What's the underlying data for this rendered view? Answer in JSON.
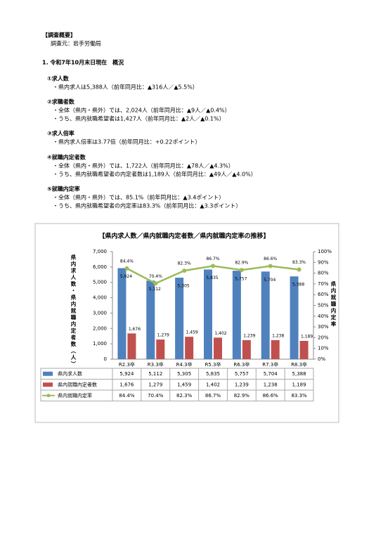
{
  "document": {
    "section_header": "【調査概要】",
    "source": "調査元：岩手労働局",
    "heading": "1. 令和7年10月末日現在　概況",
    "items": [
      {
        "title": "①求人数",
        "lines": [
          "・県内求人は5,388人（前年同月比：▲316人／▲5.5%）"
        ]
      },
      {
        "title": "②求職者数",
        "lines": [
          "・全体（県内・県外）では、2,024人（前年同月比：▲9人／▲0.4%）",
          "・うち、県内就職希望者は1,427人（前年同月比：▲2人／▲0.1%）"
        ]
      },
      {
        "title": "③求人倍率",
        "lines": [
          "・県内求人倍率は3.77倍（前年同月比：+0.22ポイント）"
        ]
      },
      {
        "title": "④就職内定者数",
        "lines": [
          "・全体（県内・県外）では、1,722人（前年同月比：▲78人／▲4.3%）",
          "・うち、県内就職希望者の内定者数は1,189人（前年同月比：▲49人／▲4.0%）"
        ]
      },
      {
        "title": "⑤就職内定率",
        "lines": [
          "・全体（県内・県外）では、85.1%（前年同月比：▲3.4ポイント）",
          "・うち、県内就職希望者の内定率は83.3%（前年同月比：▲3.3ポイント）"
        ]
      }
    ]
  },
  "chart_data": {
    "type": "bar",
    "title": "【県内求人数／県内就職内定者数／県内就職内定率の推移】",
    "y_label": "県内求人数・県内就職内定者数（人）",
    "y2_label": "県内就職内定率",
    "categories": [
      "R2.3卒",
      "R3.3卒",
      "R4.3卒",
      "R5.3卒",
      "R6.3卒",
      "R7.3卒",
      "R8.3卒"
    ],
    "series": [
      {
        "name": "県内求人数",
        "type": "bar",
        "color": "#4f81bd",
        "values": [
          5924,
          5112,
          5305,
          5835,
          5757,
          5704,
          5388
        ],
        "value_labels": [
          "5,924",
          "5,112",
          "5,305",
          "5,835",
          "5,757",
          "5,704",
          "5,388"
        ]
      },
      {
        "name": "県内就職内定者数",
        "type": "bar",
        "color": "#c0504d",
        "values": [
          1676,
          1279,
          1459,
          1402,
          1239,
          1238,
          1189
        ],
        "value_labels": [
          "1,676",
          "1,279",
          "1,459",
          "1,402",
          "1,239",
          "1,238",
          "1,189"
        ]
      },
      {
        "name": "県内就職内定率",
        "type": "line",
        "axis": "y2",
        "color": "#9bbb59",
        "values": [
          84.4,
          70.4,
          82.3,
          86.7,
          82.9,
          86.6,
          83.3
        ],
        "value_labels": [
          "84.4%",
          "70.4%",
          "82.3%",
          "86.7%",
          "82.9%",
          "86.6%",
          "83.3%"
        ]
      }
    ],
    "ylim": [
      0,
      7000
    ],
    "yticks": [
      0,
      {
        "value": 1000,
        "label": "1,000"
      },
      {
        "value": 2000,
        "label": "2,000"
      },
      {
        "value": 3000,
        "label": "3,000"
      },
      {
        "value": 4000,
        "label": "4,000"
      },
      {
        "value": 5000,
        "label": "5,000"
      },
      {
        "value": 6000,
        "label": "6,000"
      },
      {
        "value": 7000,
        "label": "7,000"
      }
    ],
    "y2lim": [
      0,
      100
    ],
    "y2ticks": [
      {
        "value": 0,
        "label": "0%"
      },
      {
        "value": 10,
        "label": "10%"
      },
      {
        "value": 20,
        "label": "20%"
      },
      {
        "value": 30,
        "label": "30%"
      },
      {
        "value": 40,
        "label": "40%"
      },
      {
        "value": 50,
        "label": "50%"
      },
      {
        "value": 60,
        "label": "60%"
      },
      {
        "value": 70,
        "label": "70%"
      },
      {
        "value": 80,
        "label": "80%"
      },
      {
        "value": 90,
        "label": "90%"
      },
      {
        "value": 100,
        "label": "100%"
      }
    ],
    "grid": false
  }
}
